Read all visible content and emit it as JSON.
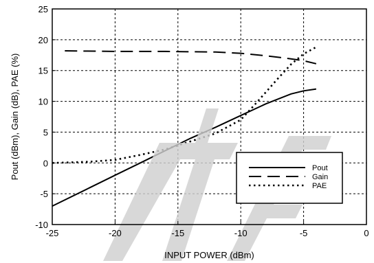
{
  "chart_data": {
    "type": "line",
    "title": "",
    "xlabel": "INPUT POWER (dBm)",
    "ylabel": "Pout (dBm), Gain (dB), PAE (%)",
    "xlim": [
      -25,
      0
    ],
    "ylim": [
      -10,
      25
    ],
    "x_ticks": [
      -25,
      -20,
      -15,
      -10,
      -5,
      0
    ],
    "y_ticks": [
      -10,
      -5,
      0,
      5,
      10,
      15,
      20,
      25
    ],
    "x_tick_labels": [
      "-25",
      "-20",
      "-15",
      "-10",
      "-5",
      "0"
    ],
    "y_tick_labels": [
      "-10",
      "-5",
      "0",
      "5",
      "10",
      "15",
      "20",
      "25"
    ],
    "grid": true,
    "legend_position": "bottom-right",
    "series": [
      {
        "name": "Pout",
        "style": "solid",
        "color": "#000000",
        "x": [
          -25,
          -22,
          -20,
          -18,
          -16,
          -14,
          -12,
          -10,
          -8,
          -6,
          -5,
          -4
        ],
        "y": [
          -7,
          -4,
          -2,
          0,
          2,
          4,
          5.8,
          7.7,
          9.6,
          11.2,
          11.7,
          12
        ]
      },
      {
        "name": "Gain",
        "style": "dashed",
        "color": "#000000",
        "x": [
          -24,
          -20,
          -16,
          -12,
          -10,
          -8,
          -6,
          -5,
          -4
        ],
        "y": [
          18.2,
          18.1,
          18.1,
          18.0,
          17.8,
          17.4,
          16.9,
          16.6,
          16.1
        ]
      },
      {
        "name": "PAE",
        "style": "dotted",
        "color": "#000000",
        "x": [
          -25,
          -22,
          -20,
          -18,
          -16,
          -14,
          -12,
          -10,
          -9,
          -8,
          -7,
          -6,
          -5,
          -4
        ],
        "y": [
          0,
          0.2,
          0.5,
          1.3,
          2.2,
          3.5,
          4.8,
          7.0,
          9.2,
          11.5,
          13.8,
          16.0,
          17.7,
          18.8
        ]
      }
    ]
  }
}
